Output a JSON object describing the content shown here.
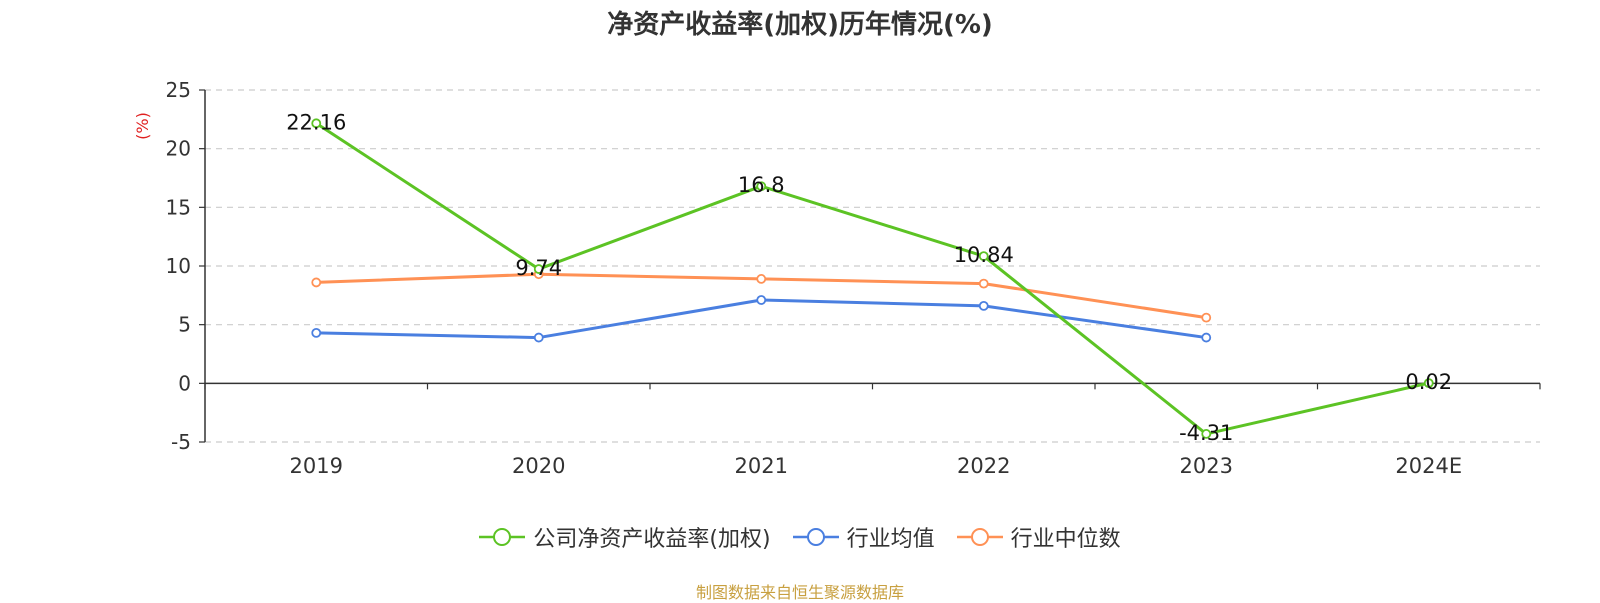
{
  "chart_data": {
    "type": "line",
    "title": "净资产收益率(加权)历年情况(%)",
    "ylabel": "(%)",
    "categories": [
      "2019",
      "2020",
      "2021",
      "2022",
      "2023",
      "2024E"
    ],
    "ylim": [
      -5,
      25
    ],
    "yticks": [
      25,
      20,
      15,
      10,
      5,
      0,
      -5
    ],
    "grid": true,
    "legend_position": "bottom",
    "series": [
      {
        "name": "公司净资产收益率(加权)",
        "color": "#5cc324",
        "values": [
          22.16,
          9.74,
          16.8,
          10.84,
          -4.31,
          0.02
        ],
        "labels": [
          "22.16",
          "9.74",
          "16.8",
          "10.84",
          "-4.31",
          "0.02"
        ]
      },
      {
        "name": "行业均值",
        "color": "#4a7fe0",
        "values": [
          4.3,
          3.9,
          7.1,
          6.6,
          3.9,
          null
        ]
      },
      {
        "name": "行业中位数",
        "color": "#ff9155",
        "values": [
          8.6,
          9.3,
          8.9,
          8.5,
          5.6,
          null
        ]
      }
    ]
  },
  "source_note": "制图数据来自恒生聚源数据库"
}
